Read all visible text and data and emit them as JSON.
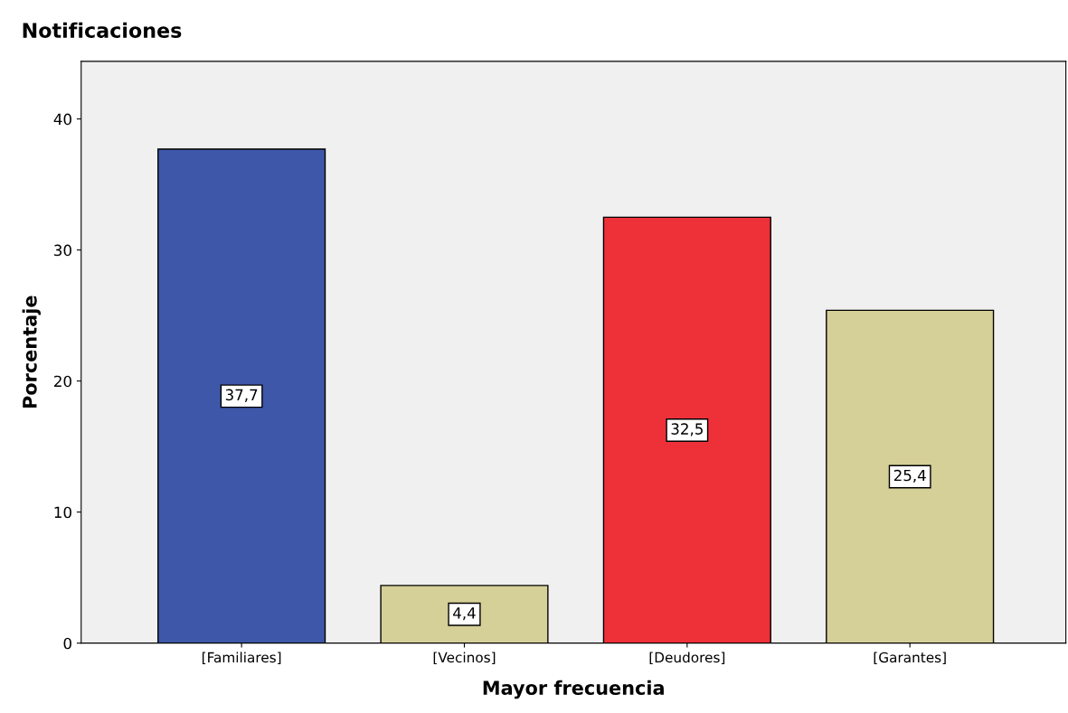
{
  "chart_data": {
    "type": "bar",
    "title": "Notificaciones",
    "xlabel": "Mayor frecuencia",
    "ylabel": "Porcentaje",
    "categories": [
      "[Familiares]",
      "[Vecinos]",
      "[Deudores]",
      "[Garantes]"
    ],
    "values": [
      37.7,
      4.4,
      32.5,
      25.4
    ],
    "value_labels": [
      "37,7",
      "4,4",
      "32,5",
      "25,4"
    ],
    "colors": [
      "#3e57a8",
      "#d5cf98",
      "#ee3039",
      "#d5cf98"
    ],
    "ylim": [
      0,
      44.4
    ],
    "yticks": [
      0,
      10,
      20,
      30,
      40
    ],
    "grid": false,
    "legend": false
  }
}
